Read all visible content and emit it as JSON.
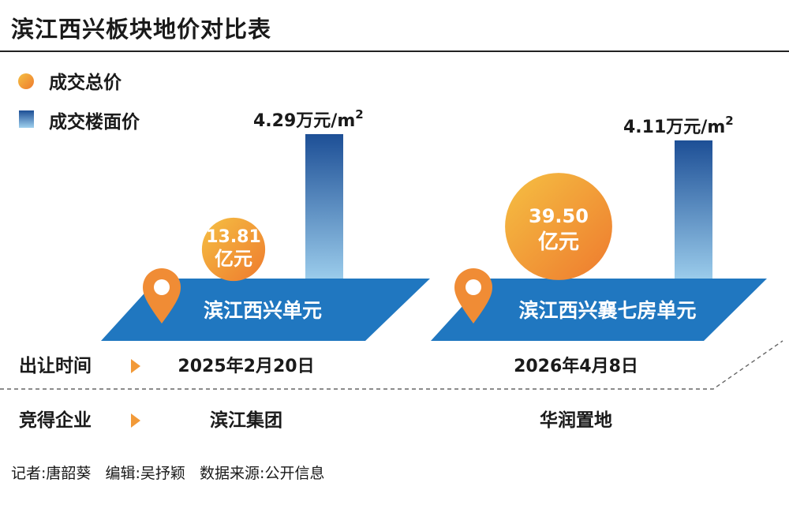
{
  "title": "滨江西兴板块地价对比表",
  "legend": [
    {
      "label": "成交总价",
      "marker": "circle"
    },
    {
      "label": "成交楼面价",
      "marker": "bar"
    }
  ],
  "colors": {
    "circle_from": "#f5c043",
    "circle_to": "#ee7a2e",
    "bar_top": "#1d4f96",
    "bar_bottom": "#9fd0ee",
    "platform": "#2077c0",
    "pin": "#f08c35",
    "arrow": "#f29a38"
  },
  "chart_data": {
    "type": "infographic",
    "title": "滨江西兴板块地价对比表",
    "series": [
      {
        "name": "成交总价",
        "unit": "亿元",
        "values": [
          13.81,
          39.5
        ],
        "labels": [
          "13.81",
          "39.50"
        ]
      },
      {
        "name": "成交楼面价",
        "unit": "万元/m2",
        "values": [
          4.29,
          4.11
        ],
        "labels": [
          "4.29万元/m",
          "4.11万元/m"
        ]
      }
    ],
    "categories": [
      "滨江西兴单元",
      "滨江西兴襄七房单元"
    ],
    "unit_sup": "2",
    "total_unit_label": "亿元"
  },
  "rows": [
    {
      "label": "出让时间",
      "values": [
        "2025年2月20日",
        "2026年4月8日"
      ]
    },
    {
      "label": "竞得企业",
      "values": [
        "滨江集团",
        "华润置地"
      ]
    }
  ],
  "footer": "记者:唐韶葵   编辑:吴抒颖   数据来源:公开信息"
}
